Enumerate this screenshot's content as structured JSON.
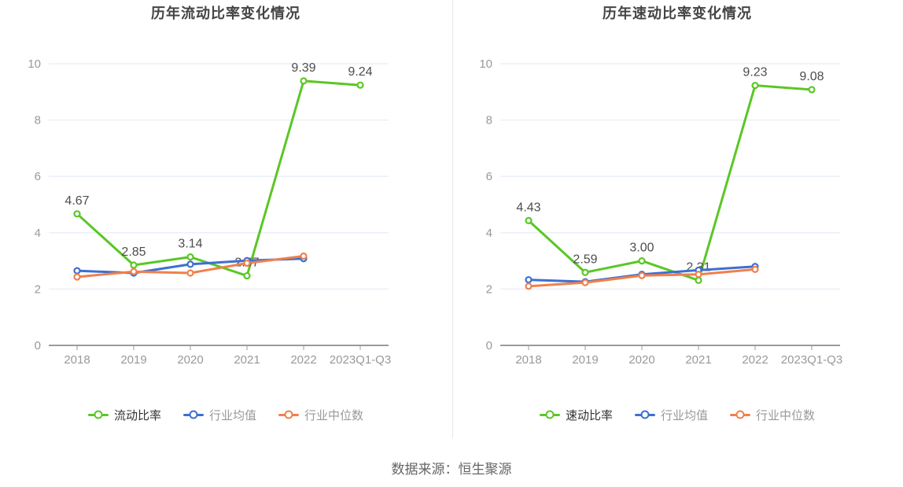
{
  "source_note": "数据来源：恒生聚源",
  "theme": {
    "grid_color": "#e8eef7",
    "axis_line_color": "#9b9b9b",
    "axis_text_color": "#999999",
    "data_label_color": "#4d4d4d",
    "title_color": "#444444",
    "legend_active_color": "#333333",
    "legend_inactive_color": "#999999",
    "divider_color": "#e8e8e8",
    "source_color": "#666666",
    "series_green": "#5ac725",
    "series_blue": "#3d6fd2",
    "series_orange": "#f0804c"
  },
  "chart_data": [
    {
      "type": "line",
      "title": "历年流动比率变化情况",
      "categories": [
        "2018",
        "2019",
        "2020",
        "2021",
        "2022",
        "2023Q1-Q3"
      ],
      "xlabel": "",
      "ylabel": "",
      "ylim": [
        0,
        10
      ],
      "y_ticks": [
        0,
        2,
        4,
        6,
        8,
        10
      ],
      "grid": true,
      "legend_position": "bottom",
      "series": [
        {
          "name": "流动比率",
          "color": "#5ac725",
          "values": [
            4.67,
            2.85,
            3.14,
            2.47,
            9.39,
            9.24
          ],
          "labels": [
            "4.67",
            "2.85",
            "3.14",
            "2.47",
            "9.39",
            "9.24"
          ]
        },
        {
          "name": "行业均值",
          "color": "#3d6fd2",
          "values": [
            2.65,
            2.57,
            2.88,
            3.01,
            3.08
          ]
        },
        {
          "name": "行业中位数",
          "color": "#f0804c",
          "values": [
            2.43,
            2.62,
            2.57,
            2.92,
            3.17
          ]
        }
      ]
    },
    {
      "type": "line",
      "title": "历年速动比率变化情况",
      "categories": [
        "2018",
        "2019",
        "2020",
        "2021",
        "2022",
        "2023Q1-Q3"
      ],
      "xlabel": "",
      "ylabel": "",
      "ylim": [
        0,
        10
      ],
      "y_ticks": [
        0,
        2,
        4,
        6,
        8,
        10
      ],
      "grid": true,
      "legend_position": "bottom",
      "series": [
        {
          "name": "速动比率",
          "color": "#5ac725",
          "values": [
            4.43,
            2.59,
            3.0,
            2.31,
            9.23,
            9.08
          ],
          "labels": [
            "4.43",
            "2.59",
            "3.00",
            "2.31",
            "9.23",
            "9.08"
          ]
        },
        {
          "name": "行业均值",
          "color": "#3d6fd2",
          "values": [
            2.33,
            2.26,
            2.52,
            2.67,
            2.8
          ]
        },
        {
          "name": "行业中位数",
          "color": "#f0804c",
          "values": [
            2.1,
            2.23,
            2.48,
            2.52,
            2.7
          ]
        }
      ]
    }
  ]
}
